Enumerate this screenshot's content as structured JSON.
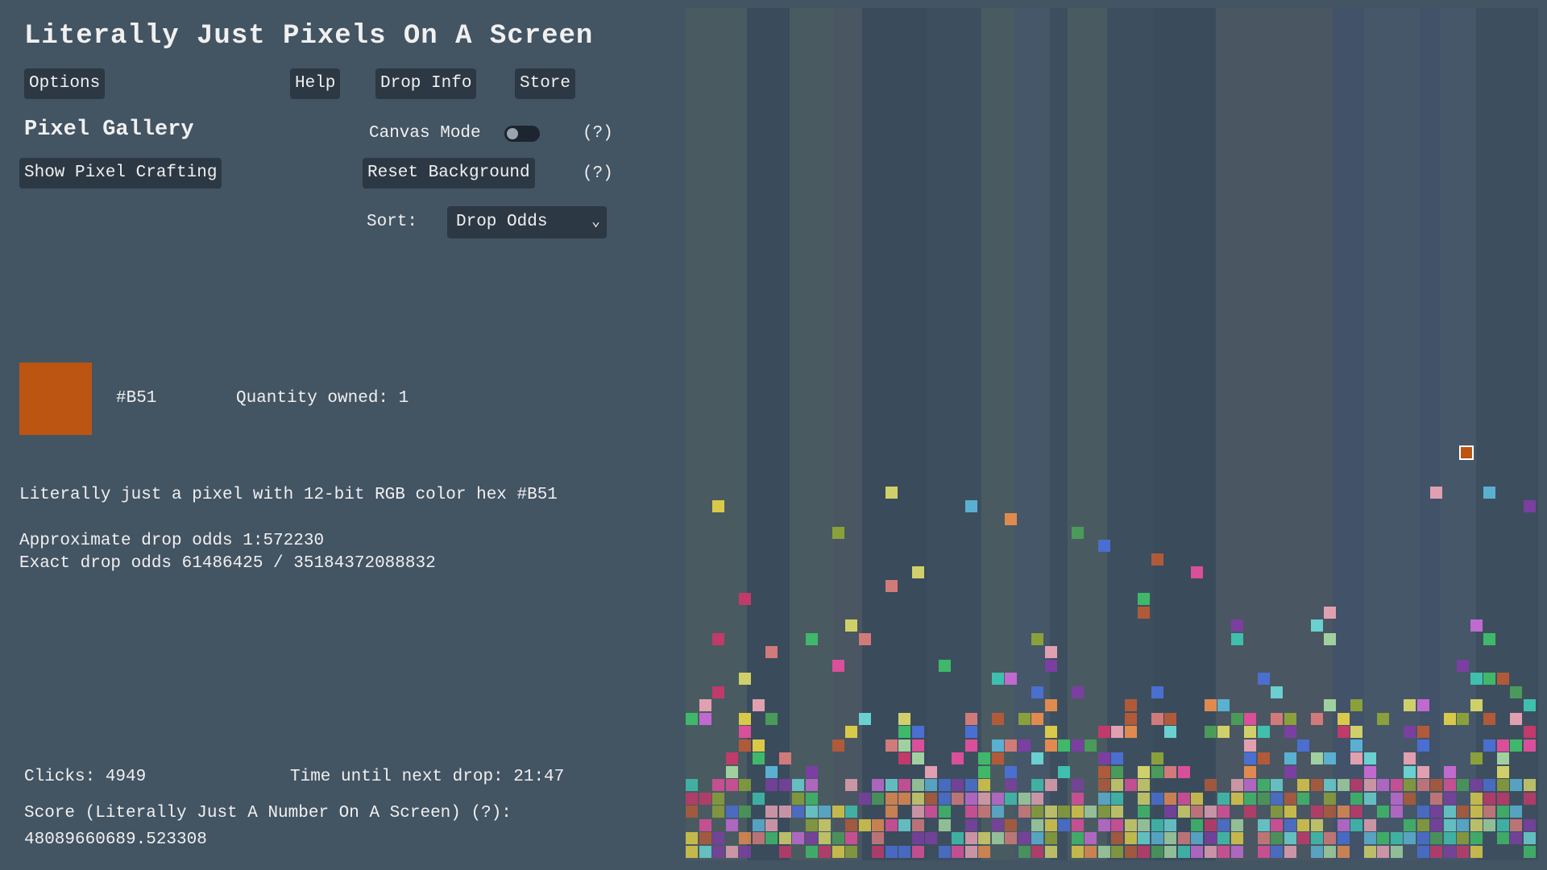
{
  "app": {
    "title": "Literally Just Pixels On A Screen"
  },
  "toolbar": {
    "options": "Options",
    "help": "Help",
    "drop_info": "Drop Info",
    "store": "Store"
  },
  "gallery": {
    "title": "Pixel Gallery",
    "canvas_mode_label": "Canvas Mode",
    "canvas_mode_on": false,
    "help_mark_1": "(?)",
    "help_mark_2": "(?)",
    "show_crafting": "Show Pixel Crafting",
    "reset_background": "Reset Background",
    "sort_label": "Sort:",
    "sort_value": "Drop Odds"
  },
  "selected": {
    "hex": "#B51",
    "color": "#bb5511",
    "quantity": "Quantity owned: 1",
    "description": "Literally just a pixel with 12-bit RGB color hex #B51",
    "approx_odds": "Approximate drop odds 1:572230",
    "exact_odds": "Exact drop odds 61486425 / 35184372088832"
  },
  "stats": {
    "clicks": "Clicks: 4949",
    "next_drop": "Time until next drop: 21:47",
    "score_label": "Score (Literally Just A Number On A Screen) (?):",
    "score_value": "48089660689.523308"
  },
  "colors": {
    "background": "#435463",
    "button_bg": "#2c3843",
    "canvas_bg": "#3f5262",
    "selected_outline": "#ffffff"
  }
}
